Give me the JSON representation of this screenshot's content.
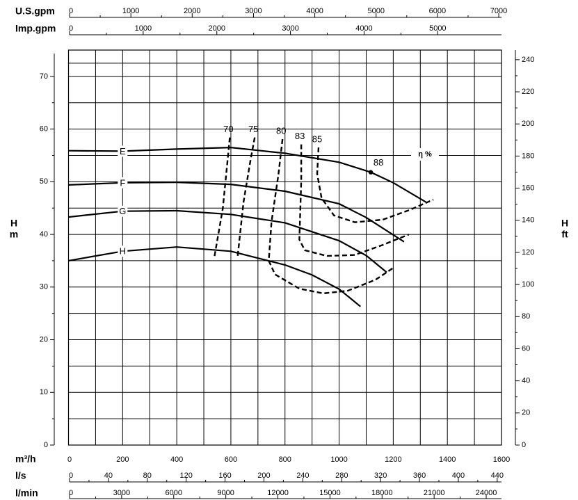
{
  "chart_data": {
    "type": "line",
    "y_title": "H",
    "y_unit": "m",
    "y2_title": "H",
    "y2_unit": "ft",
    "xlabel": "m³/h",
    "xlim": [
      0,
      1600
    ],
    "xticks": [
      0,
      200,
      400,
      600,
      800,
      1000,
      1200,
      1400,
      1600
    ],
    "ylim": [
      0,
      75
    ],
    "yticks": [
      0,
      10,
      20,
      30,
      40,
      50,
      60,
      70
    ],
    "y2lim": [
      0,
      246
    ],
    "y2ticks": [
      0,
      20,
      40,
      60,
      80,
      100,
      120,
      140,
      160,
      180,
      200,
      220,
      240
    ],
    "grid": true,
    "extra_x_axes": [
      {
        "label": "U.S.gpm",
        "position": "top",
        "xlim": [
          0,
          7045
        ],
        "xticks": [
          0,
          1000,
          2000,
          3000,
          4000,
          5000,
          6000,
          7000
        ]
      },
      {
        "label": "Imp.gpm",
        "position": "top",
        "xlim": [
          0,
          5866
        ],
        "xticks": [
          0,
          1000,
          2000,
          3000,
          4000,
          5000
        ]
      },
      {
        "label": "l/s",
        "position": "bottom",
        "xlim": [
          0,
          444.4
        ],
        "xticks": [
          0,
          40,
          80,
          120,
          160,
          200,
          240,
          280,
          320,
          360,
          400,
          440
        ]
      },
      {
        "label": "l/min",
        "position": "bottom",
        "xlim": [
          0,
          24880
        ],
        "xticks": [
          0,
          3000,
          6000,
          9000,
          12000,
          15000,
          18000,
          21000,
          24000
        ]
      }
    ],
    "series": [
      {
        "name": "E",
        "color": "#000000",
        "x": [
          0,
          200,
          400,
          600,
          800,
          1000,
          1117,
          1200,
          1325
        ],
        "values": [
          55.9,
          55.8,
          56.2,
          56.5,
          55.4,
          53.7,
          51.8,
          49.8,
          46.0
        ]
      },
      {
        "name": "F",
        "color": "#000000",
        "x": [
          0,
          200,
          400,
          600,
          800,
          1000,
          1100,
          1240
        ],
        "values": [
          49.4,
          49.8,
          49.9,
          49.5,
          48.2,
          45.8,
          43.2,
          38.6
        ]
      },
      {
        "name": "G",
        "color": "#000000",
        "x": [
          0,
          200,
          400,
          600,
          800,
          1000,
          1100,
          1176
        ],
        "values": [
          43.3,
          44.4,
          44.5,
          43.8,
          42.2,
          38.8,
          36.0,
          32.8
        ]
      },
      {
        "name": "H",
        "color": "#000000",
        "x": [
          0,
          200,
          400,
          600,
          800,
          900,
          1000,
          1079
        ],
        "values": [
          35.0,
          36.8,
          37.6,
          36.8,
          34.2,
          32.3,
          29.6,
          26.3
        ]
      }
    ],
    "efficiency": {
      "label": "η %",
      "color": "#000000",
      "lines": [
        {
          "name": "70",
          "x": [
            596,
            588,
            570,
            539
          ],
          "values": [
            58.4,
            54.2,
            44.9,
            35.7
          ]
        },
        {
          "name": "75",
          "x": [
            688,
            673,
            647,
            624
          ],
          "values": [
            58.4,
            54.2,
            46.2,
            35.4
          ]
        },
        {
          "name": "80",
          "x": [
            791,
            776,
            750,
            740,
            763,
            853,
            942,
            1032,
            1135,
            1199
          ],
          "values": [
            58.1,
            51.5,
            42.3,
            35.0,
            32.4,
            29.7,
            28.8,
            29.3,
            31.4,
            33.6
          ]
        },
        {
          "name": "83",
          "x": [
            860,
            860,
            853,
            873,
            955,
            1058,
            1161,
            1258
          ],
          "values": [
            57.1,
            50.2,
            39.0,
            37.0,
            35.9,
            36.1,
            38.0,
            40.0
          ]
        },
        {
          "name": "85",
          "x": [
            924,
            919,
            935,
            981,
            1058,
            1161,
            1263,
            1348
          ],
          "values": [
            56.5,
            51.5,
            46.9,
            43.6,
            42.3,
            42.8,
            44.7,
            46.6
          ]
        }
      ],
      "points": [
        {
          "name": "88",
          "x": [
            1117
          ],
          "values": [
            51.8
          ]
        }
      ]
    }
  }
}
